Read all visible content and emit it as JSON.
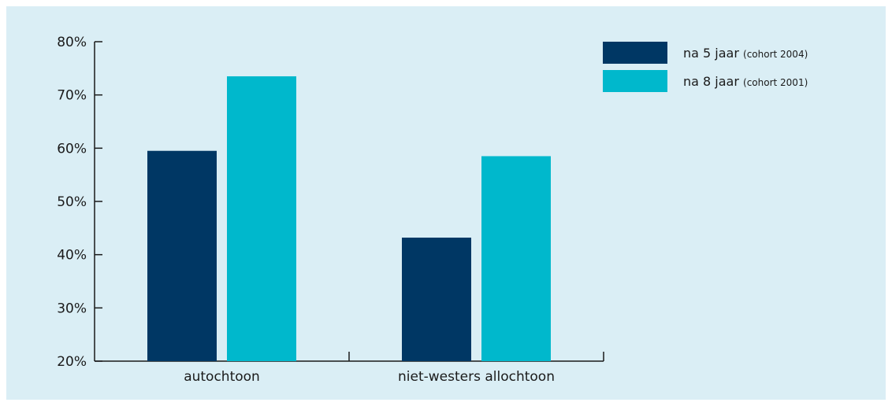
{
  "chart_data": {
    "type": "bar",
    "categories": [
      "autochtoon",
      "niet-westers allochtoon"
    ],
    "series": [
      {
        "name": "na 5 jaar",
        "note": "(cohort 2004)",
        "color": "#003764",
        "values": [
          59.5,
          43.2
        ]
      },
      {
        "name": "na 8 jaar",
        "note": "(cohort 2001)",
        "color": "#00b8cc",
        "values": [
          73.5,
          58.5
        ]
      }
    ],
    "yticks": [
      "80%",
      "70%",
      "60%",
      "50%",
      "40%",
      "30%",
      "20%"
    ],
    "ylim": [
      20,
      80
    ],
    "legend_position": "top-right",
    "grid": false
  }
}
